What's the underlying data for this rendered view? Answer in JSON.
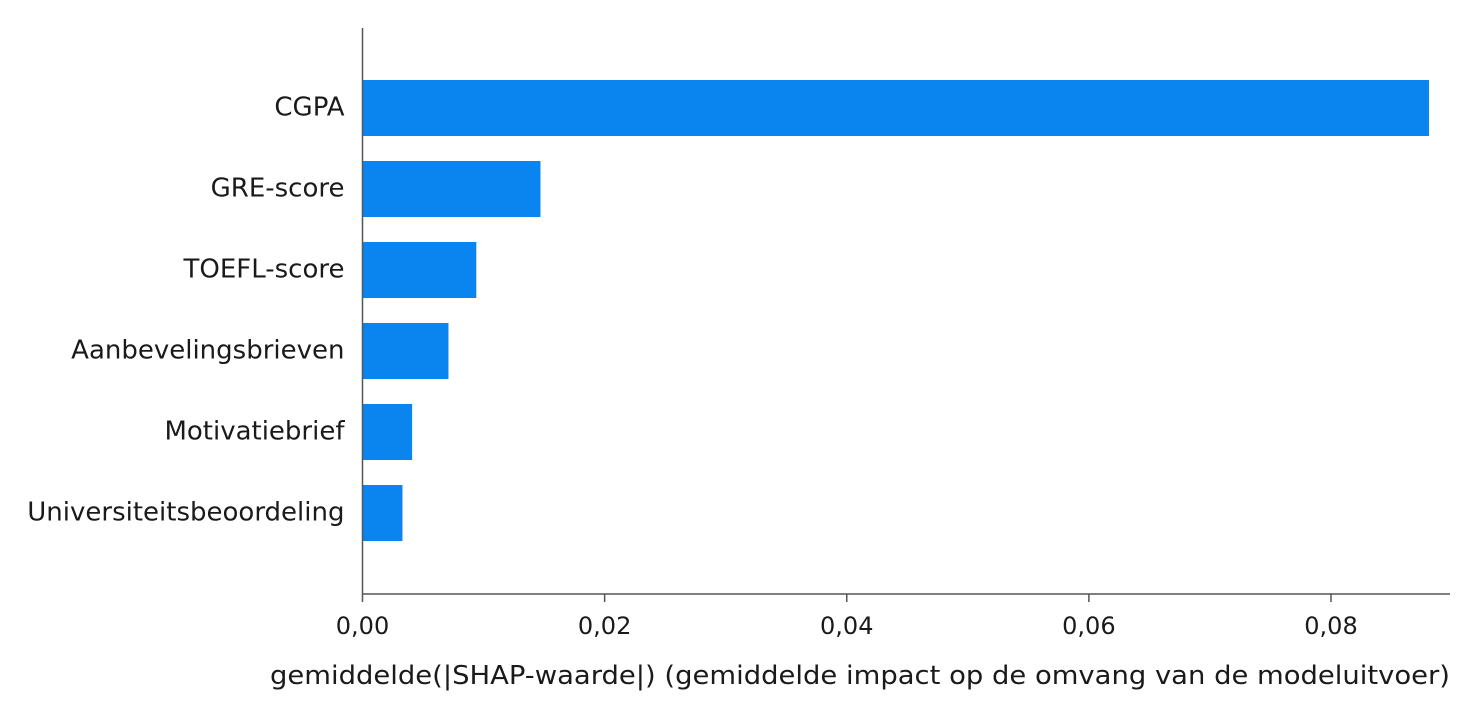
{
  "chart_data": {
    "type": "bar",
    "orientation": "horizontal",
    "categories": [
      "CGPA",
      "GRE-score",
      "TOEFL-score",
      "Aanbevelingsbrieven",
      "Motivatiebrief",
      "Universiteitsbeoordeling"
    ],
    "values": [
      0.0881,
      0.0147,
      0.0094,
      0.0071,
      0.0041,
      0.0033
    ],
    "xlabel": "gemiddelde(|SHAP-waarde|) (gemiddelde impact op de omvang van de modeluitvoer)",
    "ylabel": "",
    "xlim": [
      0,
      0.0929
    ],
    "xticks": [
      0,
      0.02,
      0.04,
      0.06,
      0.08
    ],
    "xtick_labels": [
      "0,00",
      "0,02",
      "0,04",
      "0,06",
      "0,08"
    ],
    "grid": false,
    "bar_color": "#0a84ee",
    "axis_color": "#555555"
  }
}
